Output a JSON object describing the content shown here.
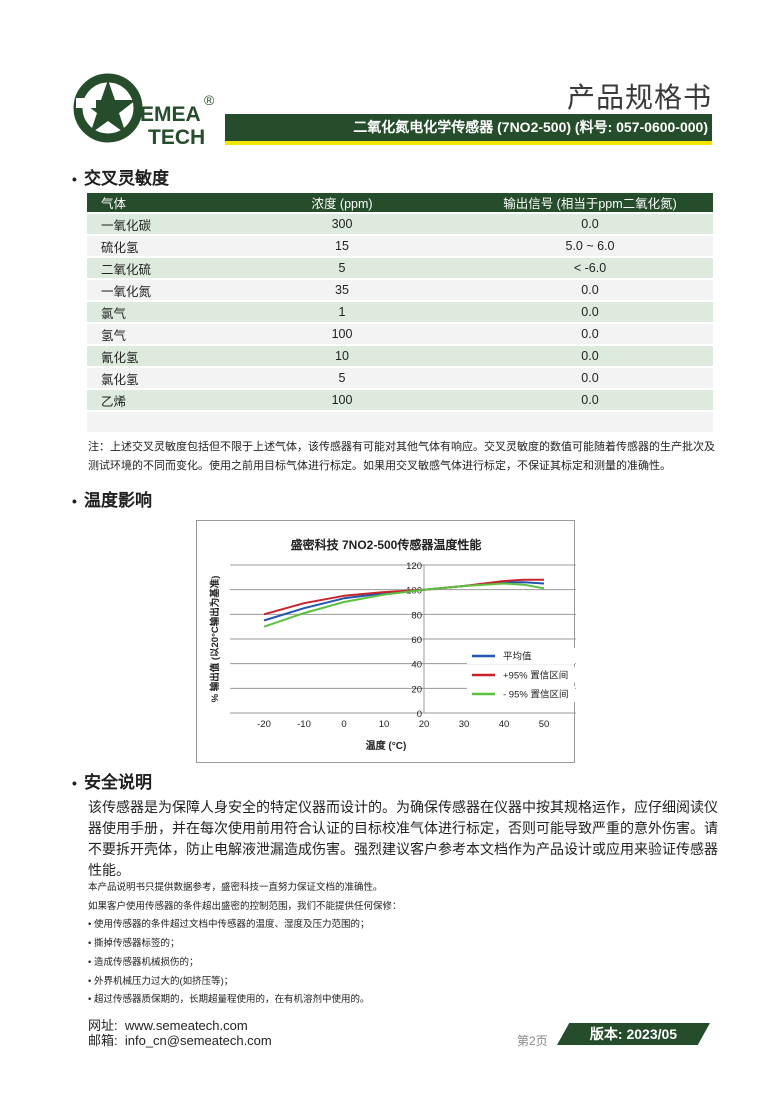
{
  "header": {
    "logo_text": [
      "EMEA",
      "TECH"
    ],
    "logo_mark": "®",
    "doc_title": "产品规格书",
    "product_line": "二氧化氮电化学传感器 (7NO2-500) (料号: 057-0600-000)",
    "brand_color": "#264d2b",
    "accent_color": "#f5e600"
  },
  "cross": {
    "heading": "交叉灵敏度",
    "columns": [
      "气体",
      "浓度 (ppm)",
      "输出信号 (相当于ppm二氧化氮)"
    ],
    "rows": [
      [
        "一氧化碳",
        "300",
        "0.0"
      ],
      [
        "硫化氢",
        "15",
        "5.0 ~ 6.0"
      ],
      [
        "二氧化硫",
        "5",
        "< -6.0"
      ],
      [
        "一氧化氮",
        "35",
        "0.0"
      ],
      [
        "氯气",
        "1",
        "0.0"
      ],
      [
        "氢气",
        "100",
        "0.0"
      ],
      [
        "氰化氢",
        "10",
        "0.0"
      ],
      [
        "氯化氢",
        "5",
        "0.0"
      ],
      [
        "乙烯",
        "100",
        "0.0"
      ]
    ],
    "note": "注：上述交叉灵敏度包括但不限于上述气体，该传感器有可能对其他气体有响应。交叉灵敏度的数值可能随着传感器的生产批次及测试环境的不同而变化。使用之前用目标气体进行标定。如果用交叉敏感气体进行标定，不保证其标定和测量的准确性。"
  },
  "temp": {
    "heading": "温度影响"
  },
  "chart_data": {
    "type": "line",
    "title": "盛密科技 7NO2-500传感器温度性能",
    "xlabel": "温度 (°C)",
    "ylabel": "% 输出值 (以20°C输出为基准)",
    "xlim": [
      -28.5,
      58
    ],
    "ylim": [
      0,
      120
    ],
    "xticks": [
      -20,
      -10,
      0,
      10,
      20,
      30,
      40,
      50
    ],
    "yticks": [
      0,
      20,
      40,
      60,
      80,
      100,
      120
    ],
    "grid": "horizontal",
    "legend_position": "right",
    "x": [
      -20,
      -10,
      0,
      10,
      20,
      30,
      40,
      45,
      50
    ],
    "series": [
      {
        "name": "平均值",
        "color": "#2255b0",
        "values": [
          75,
          85,
          93,
          97,
          100,
          103,
          106,
          106,
          105
        ]
      },
      {
        "name": "+95% 置信区间",
        "color": "#c8232c",
        "values": [
          80,
          89,
          95,
          98,
          100,
          103,
          107,
          108,
          108
        ]
      },
      {
        "name": "- 95% 置信区间",
        "color": "#5cc040",
        "values": [
          70,
          81,
          90,
          96,
          100,
          103,
          105,
          104,
          101
        ]
      }
    ]
  },
  "safety": {
    "heading": "安全说明",
    "text": "该传感器是为保障人身安全的特定仪器而设计的。为确保传感器在仪器中按其规格运作，应仔细阅读仪器使用手册，并在每次使用前用符合认证的目标校准气体进行标定，否则可能导致严重的意外伤害。请不要拆开壳体，防止电解液泄漏造成伤害。强烈建议客户参考本文档作为产品设计或应用来验证传感器性能。"
  },
  "disclaimer": [
    "本产品说明书只提供数据参考，盛密科技一直努力保证文档的准确性。",
    "如果客户使用传感器的条件超出盛密的控制范围，我们不能提供任何保修：",
    "• 使用传感器的条件超过文档中传感器的温度、湿度及压力范围的；",
    "• 撕掉传感器标签的；",
    "• 造成传感器机械损伤的；",
    "• 外界机械压力过大的(如挤压等)；",
    "• 超过传感器质保期的，长期超量程使用的，在有机溶剂中使用的。"
  ],
  "footer": {
    "website_label": "网址:",
    "website": "www.semeatech.com",
    "email_label": "邮箱:",
    "email": "info_cn@semeatech.com",
    "page": "第2页",
    "version": "版本: 2023/05"
  }
}
